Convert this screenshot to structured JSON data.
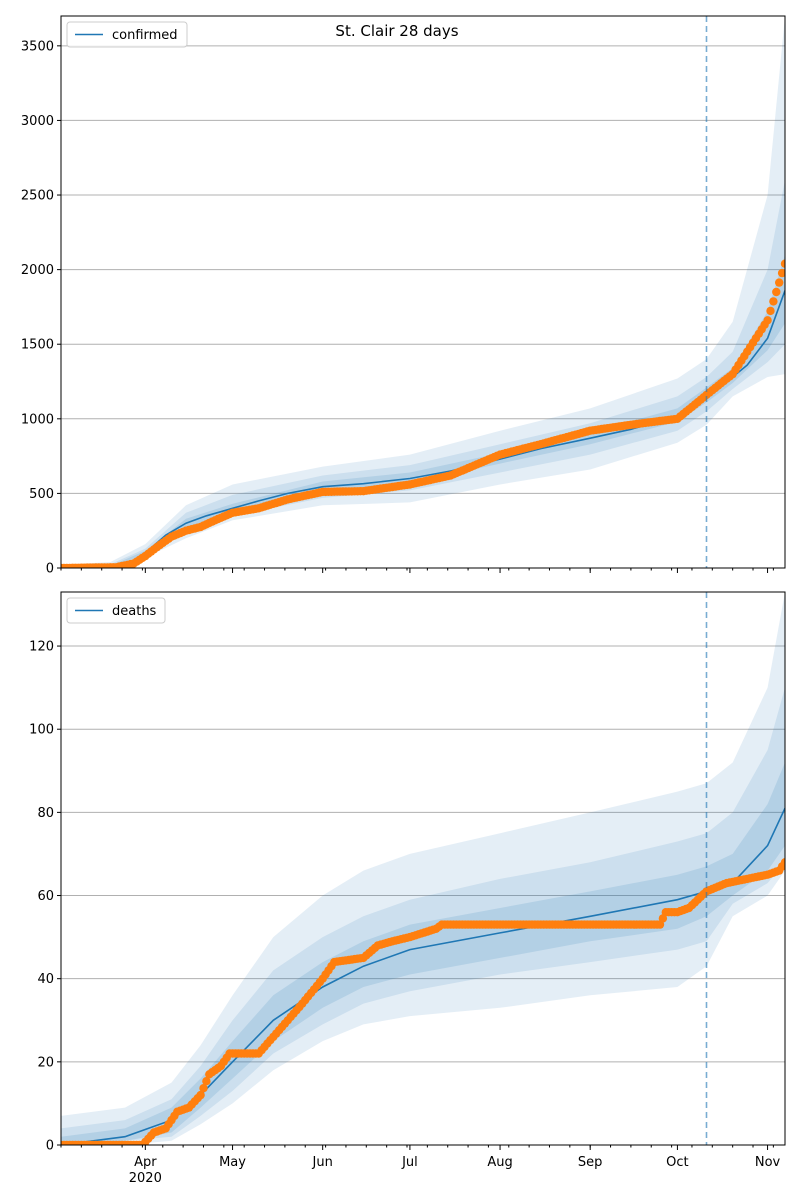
{
  "figure": {
    "title": "St. Clair 28 days"
  },
  "colors": {
    "model_line": "#1f77b4",
    "observed_points": "#ff7f0e",
    "band": "#1f77b4",
    "grid": "#b0b0b0",
    "forecast_marker": "#1f77b4"
  },
  "x_axis": {
    "tick_labels": [
      "Apr",
      "May",
      "Jun",
      "Jul",
      "Aug",
      "Sep",
      "Oct",
      "Nov"
    ],
    "year_label": "2020",
    "start": "2020-03-03",
    "end": "2020-11-07",
    "forecast_date": "2020-10-11"
  },
  "chart_data": [
    {
      "type": "line",
      "legend": "confirmed",
      "legend_position": "top-left",
      "grid": true,
      "ylim": [
        0,
        3700
      ],
      "yticks": [
        "0",
        "500",
        "1000",
        "1500",
        "2000",
        "2500",
        "3000",
        "3500"
      ],
      "model_median": [
        [
          "2020-03-03",
          0
        ],
        [
          "2020-03-20",
          10
        ],
        [
          "2020-03-27",
          40
        ],
        [
          "2020-04-01",
          100
        ],
        [
          "2020-04-08",
          220
        ],
        [
          "2020-04-15",
          300
        ],
        [
          "2020-04-22",
          350
        ],
        [
          "2020-05-01",
          400
        ],
        [
          "2020-05-10",
          450
        ],
        [
          "2020-05-20",
          500
        ],
        [
          "2020-06-01",
          545
        ],
        [
          "2020-06-15",
          565
        ],
        [
          "2020-07-01",
          600
        ],
        [
          "2020-07-15",
          650
        ],
        [
          "2020-08-01",
          730
        ],
        [
          "2020-08-15",
          800
        ],
        [
          "2020-09-01",
          870
        ],
        [
          "2020-09-15",
          930
        ],
        [
          "2020-10-01",
          1020
        ],
        [
          "2020-10-11",
          1160
        ],
        [
          "2020-10-20",
          1280
        ],
        [
          "2020-10-25",
          1360
        ],
        [
          "2020-11-01",
          1540
        ],
        [
          "2020-11-07",
          1860
        ]
      ],
      "band_outer": [
        [
          "2020-03-03",
          0,
          20
        ],
        [
          "2020-03-20",
          0,
          40
        ],
        [
          "2020-04-01",
          70,
          160
        ],
        [
          "2020-04-15",
          200,
          420
        ],
        [
          "2020-05-01",
          320,
          560
        ],
        [
          "2020-06-01",
          420,
          680
        ],
        [
          "2020-07-01",
          440,
          760
        ],
        [
          "2020-08-01",
          560,
          920
        ],
        [
          "2020-09-01",
          660,
          1070
        ],
        [
          "2020-10-01",
          840,
          1270
        ],
        [
          "2020-10-11",
          960,
          1400
        ],
        [
          "2020-10-20",
          1150,
          1650
        ],
        [
          "2020-11-01",
          1280,
          2500
        ],
        [
          "2020-11-07",
          1300,
          3700
        ]
      ],
      "band_middle": [
        [
          "2020-03-03",
          0,
          12
        ],
        [
          "2020-03-20",
          5,
          25
        ],
        [
          "2020-04-01",
          80,
          130
        ],
        [
          "2020-04-15",
          240,
          370
        ],
        [
          "2020-05-01",
          350,
          490
        ],
        [
          "2020-06-01",
          470,
          620
        ],
        [
          "2020-07-01",
          520,
          690
        ],
        [
          "2020-08-01",
          640,
          830
        ],
        [
          "2020-09-01",
          760,
          970
        ],
        [
          "2020-10-01",
          920,
          1150
        ],
        [
          "2020-10-11",
          1050,
          1280
        ],
        [
          "2020-10-20",
          1200,
          1450
        ],
        [
          "2020-11-01",
          1380,
          2000
        ],
        [
          "2020-11-07",
          1500,
          2600
        ]
      ],
      "band_inner": [
        [
          "2020-03-03",
          0,
          6
        ],
        [
          "2020-03-20",
          8,
          15
        ],
        [
          "2020-04-01",
          90,
          115
        ],
        [
          "2020-04-15",
          270,
          330
        ],
        [
          "2020-05-01",
          380,
          430
        ],
        [
          "2020-06-01",
          510,
          580
        ],
        [
          "2020-07-01",
          570,
          640
        ],
        [
          "2020-08-01",
          700,
          770
        ],
        [
          "2020-09-01",
          830,
          910
        ],
        [
          "2020-10-01",
          980,
          1070
        ],
        [
          "2020-10-11",
          1110,
          1210
        ],
        [
          "2020-10-20",
          1240,
          1340
        ],
        [
          "2020-11-01",
          1460,
          1720
        ],
        [
          "2020-11-07",
          1640,
          2100
        ]
      ],
      "observed": [
        [
          "2020-03-03",
          0
        ],
        [
          "2020-03-22",
          5
        ],
        [
          "2020-03-28",
          30
        ],
        [
          "2020-04-01",
          80
        ],
        [
          "2020-04-05",
          140
        ],
        [
          "2020-04-10",
          210
        ],
        [
          "2020-04-15",
          250
        ],
        [
          "2020-04-20",
          275
        ],
        [
          "2020-04-25",
          320
        ],
        [
          "2020-05-01",
          370
        ],
        [
          "2020-05-10",
          400
        ],
        [
          "2020-05-20",
          460
        ],
        [
          "2020-06-01",
          510
        ],
        [
          "2020-06-15",
          515
        ],
        [
          "2020-07-01",
          560
        ],
        [
          "2020-07-15",
          620
        ],
        [
          "2020-08-01",
          760
        ],
        [
          "2020-08-15",
          830
        ],
        [
          "2020-09-01",
          920
        ],
        [
          "2020-09-15",
          960
        ],
        [
          "2020-10-01",
          1000
        ],
        [
          "2020-10-11",
          1160
        ],
        [
          "2020-10-20",
          1300
        ],
        [
          "2020-10-25",
          1450
        ],
        [
          "2020-11-01",
          1660
        ],
        [
          "2020-11-07",
          2040
        ]
      ]
    },
    {
      "type": "line",
      "legend": "deaths",
      "legend_position": "top-left",
      "grid": true,
      "ylim": [
        0,
        133
      ],
      "yticks": [
        "0",
        "20",
        "40",
        "60",
        "80",
        "100",
        "120"
      ],
      "model_median": [
        [
          "2020-03-03",
          0
        ],
        [
          "2020-03-25",
          2
        ],
        [
          "2020-04-10",
          6
        ],
        [
          "2020-04-20",
          12
        ],
        [
          "2020-05-01",
          20
        ],
        [
          "2020-05-15",
          30
        ],
        [
          "2020-06-01",
          38
        ],
        [
          "2020-06-15",
          43
        ],
        [
          "2020-07-01",
          47
        ],
        [
          "2020-08-01",
          51
        ],
        [
          "2020-09-01",
          55
        ],
        [
          "2020-10-01",
          59
        ],
        [
          "2020-10-11",
          61
        ],
        [
          "2020-10-20",
          63
        ],
        [
          "2020-11-01",
          72
        ],
        [
          "2020-11-07",
          81
        ]
      ],
      "band_outer": [
        [
          "2020-03-03",
          0,
          7
        ],
        [
          "2020-03-25",
          0,
          9
        ],
        [
          "2020-04-10",
          1,
          15
        ],
        [
          "2020-04-20",
          5,
          24
        ],
        [
          "2020-05-01",
          10,
          36
        ],
        [
          "2020-05-15",
          18,
          50
        ],
        [
          "2020-06-01",
          25,
          60
        ],
        [
          "2020-06-15",
          29,
          66
        ],
        [
          "2020-07-01",
          31,
          70
        ],
        [
          "2020-08-01",
          33,
          75
        ],
        [
          "2020-09-01",
          36,
          80
        ],
        [
          "2020-10-01",
          38,
          85
        ],
        [
          "2020-10-11",
          43,
          87
        ],
        [
          "2020-10-20",
          55,
          92
        ],
        [
          "2020-11-01",
          60,
          110
        ],
        [
          "2020-11-07",
          66,
          133
        ]
      ],
      "band_middle": [
        [
          "2020-03-03",
          0,
          4
        ],
        [
          "2020-03-25",
          1,
          6
        ],
        [
          "2020-04-10",
          2,
          11
        ],
        [
          "2020-04-20",
          7,
          19
        ],
        [
          "2020-05-01",
          13,
          30
        ],
        [
          "2020-05-15",
          22,
          42
        ],
        [
          "2020-06-01",
          29,
          50
        ],
        [
          "2020-06-15",
          34,
          55
        ],
        [
          "2020-07-01",
          37,
          59
        ],
        [
          "2020-08-01",
          41,
          64
        ],
        [
          "2020-09-01",
          44,
          68
        ],
        [
          "2020-10-01",
          47,
          73
        ],
        [
          "2020-10-11",
          49,
          75
        ],
        [
          "2020-10-20",
          58,
          80
        ],
        [
          "2020-11-01",
          63,
          95
        ],
        [
          "2020-11-07",
          68,
          110
        ]
      ],
      "band_inner": [
        [
          "2020-03-03",
          0,
          2
        ],
        [
          "2020-03-25",
          1,
          4
        ],
        [
          "2020-04-10",
          3,
          9
        ],
        [
          "2020-04-20",
          9,
          16
        ],
        [
          "2020-05-01",
          16,
          25
        ],
        [
          "2020-05-15",
          25,
          36
        ],
        [
          "2020-06-01",
          33,
          44
        ],
        [
          "2020-06-15",
          38,
          49
        ],
        [
          "2020-07-01",
          41,
          53
        ],
        [
          "2020-08-01",
          45,
          57
        ],
        [
          "2020-09-01",
          49,
          61
        ],
        [
          "2020-10-01",
          52,
          65
        ],
        [
          "2020-10-11",
          55,
          67
        ],
        [
          "2020-10-20",
          60,
          70
        ],
        [
          "2020-11-01",
          66,
          82
        ],
        [
          "2020-11-07",
          72,
          92
        ]
      ],
      "observed": [
        [
          "2020-03-03",
          0
        ],
        [
          "2020-03-31",
          0
        ],
        [
          "2020-04-04",
          3
        ],
        [
          "2020-04-08",
          4
        ],
        [
          "2020-04-12",
          8
        ],
        [
          "2020-04-16",
          9
        ],
        [
          "2020-04-20",
          12
        ],
        [
          "2020-04-23",
          17
        ],
        [
          "2020-04-27",
          19
        ],
        [
          "2020-04-30",
          22
        ],
        [
          "2020-05-10",
          22
        ],
        [
          "2020-05-15",
          26
        ],
        [
          "2020-05-20",
          30
        ],
        [
          "2020-05-25",
          34
        ],
        [
          "2020-06-01",
          40
        ],
        [
          "2020-06-05",
          44
        ],
        [
          "2020-06-15",
          45
        ],
        [
          "2020-06-20",
          48
        ],
        [
          "2020-06-25",
          49
        ],
        [
          "2020-07-01",
          50
        ],
        [
          "2020-07-10",
          52
        ],
        [
          "2020-07-12",
          53
        ],
        [
          "2020-09-25",
          53
        ],
        [
          "2020-09-27",
          56
        ],
        [
          "2020-10-01",
          56
        ],
        [
          "2020-10-05",
          57
        ],
        [
          "2020-10-08",
          59
        ],
        [
          "2020-10-11",
          61
        ],
        [
          "2020-10-18",
          63
        ],
        [
          "2020-10-25",
          64
        ],
        [
          "2020-11-01",
          65
        ],
        [
          "2020-11-05",
          66
        ],
        [
          "2020-11-07",
          68
        ]
      ]
    }
  ]
}
